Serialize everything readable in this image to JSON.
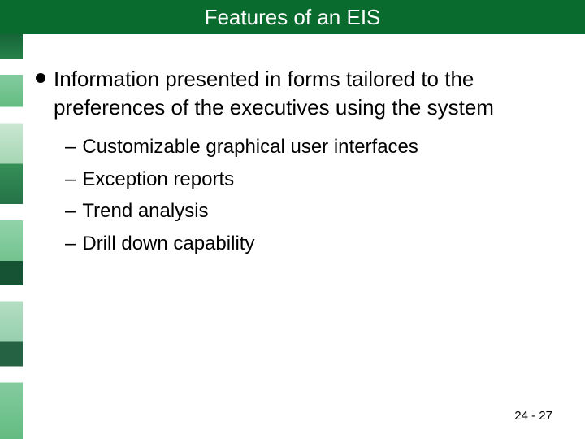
{
  "slide": {
    "title": "Features of an EIS",
    "title_bar_color": "#0a6b2f",
    "title_text_color": "#ffffff",
    "title_fontsize": 26,
    "bullet": {
      "text": "Information presented in forms tailored to the preferences of the executives using the system",
      "dot_color": "#000000",
      "fontsize": 26
    },
    "sub_items": [
      "Customizable graphical user interfaces",
      "Exception reports",
      "Trend analysis",
      "Drill down capability"
    ],
    "sub_fontsize": 24,
    "page_number": "24 - 27",
    "background_color": "#ffffff"
  }
}
